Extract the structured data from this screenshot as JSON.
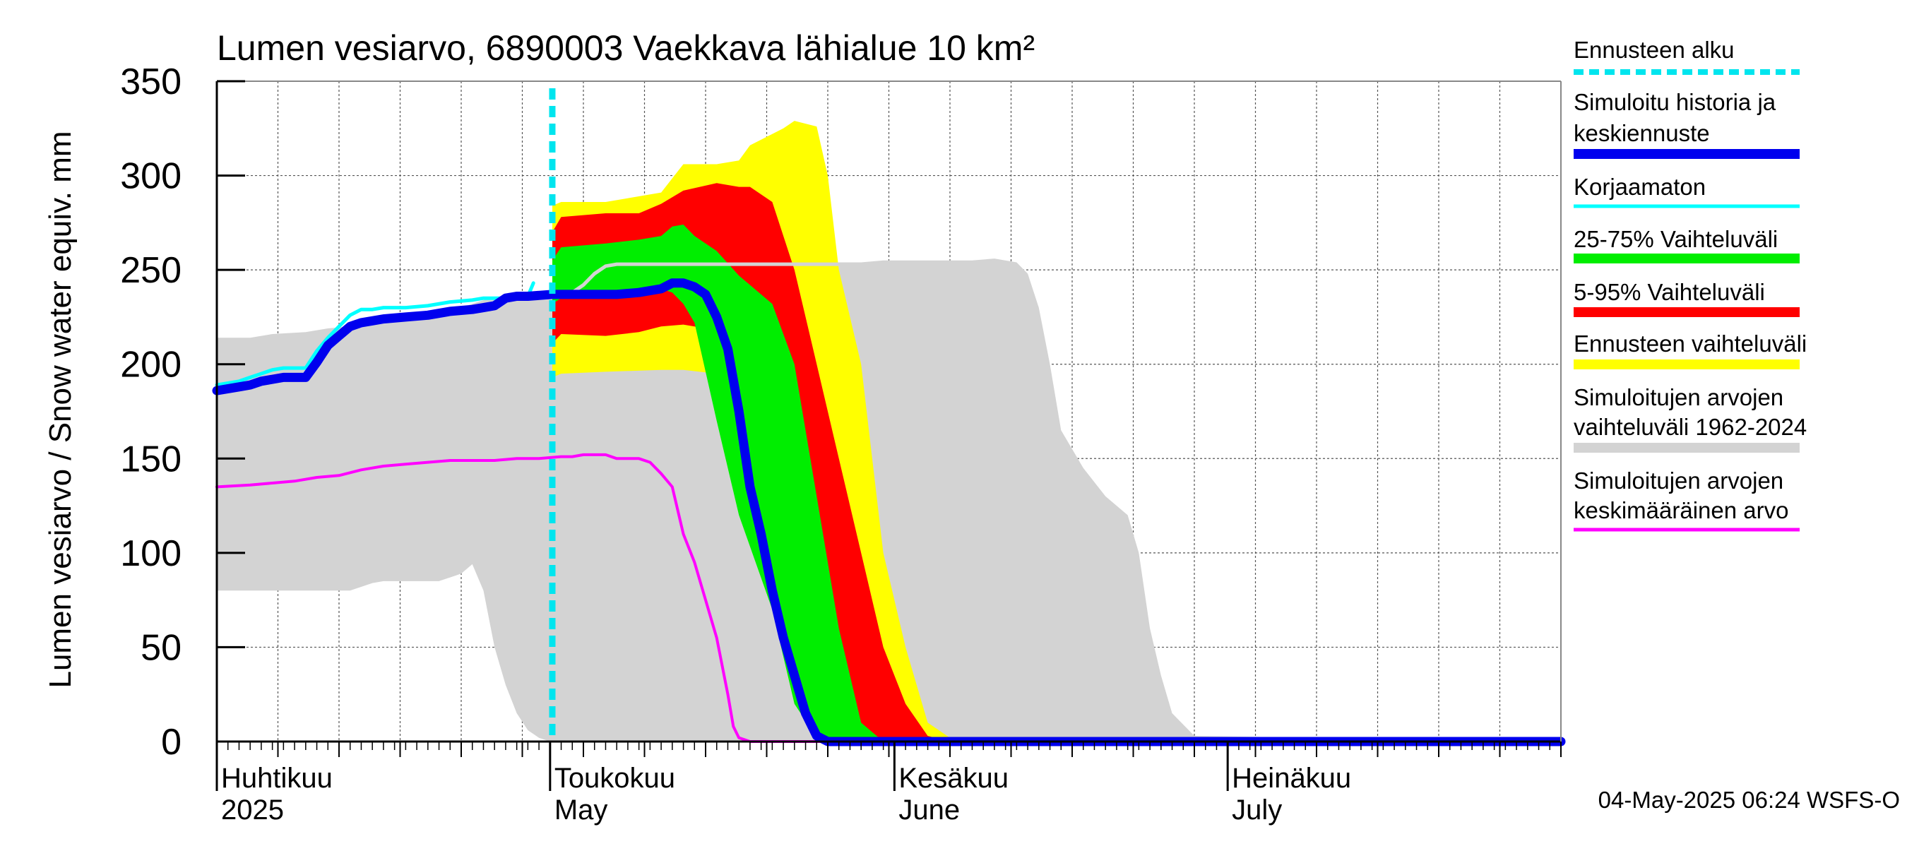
{
  "chart_data": {
    "type": "area",
    "title": "Lumen vesiarvo, 6890003 Vaekkava lähialue 10 km²",
    "ylabel": "Lumen vesiarvo / Snow water equiv.    mm",
    "ylim": [
      0,
      350
    ],
    "yticks": [
      0,
      50,
      100,
      150,
      200,
      250,
      300,
      350
    ],
    "grid": true,
    "legend_position": "right",
    "x_range_days": [
      0,
      121
    ],
    "x_start_date": "2025-04-01",
    "forecast_start_day": 30.2,
    "month_labels": [
      {
        "day": 0,
        "fi": "Huhtikuu",
        "en": "2025"
      },
      {
        "day": 30,
        "fi": "Toukokuu",
        "en": "May"
      },
      {
        "day": 61,
        "fi": "Kesäkuu",
        "en": "June"
      },
      {
        "day": 91,
        "fi": "Heinäkuu",
        "en": "July"
      }
    ],
    "timestamp": "04-May-2025 06:24 WSFS-O",
    "colors": {
      "historical_range": "#d3d3d3",
      "forecast_range": "#ffff00",
      "p5_95": "#ff0000",
      "p25_75": "#00ee00",
      "median": "#0000ee",
      "uncorrected": "#00ffff",
      "mean": "#ff00ff",
      "forecast_start": "#00e5ee",
      "gray_line": "#d3d3d3"
    },
    "series": [
      {
        "name": "Simuloitujen arvojen vaihteluväli 1962-2024",
        "kind": "band",
        "color": "#d3d3d3",
        "x": [
          0,
          3,
          5,
          8,
          10,
          12,
          14,
          15,
          18,
          20,
          21,
          22,
          23,
          24,
          25,
          26,
          27,
          28,
          29,
          30,
          31,
          32,
          33,
          35,
          37,
          39,
          40,
          42,
          44,
          46,
          48,
          50,
          52,
          54,
          56,
          58,
          60,
          62,
          64,
          66,
          68,
          70,
          72,
          73,
          74,
          75,
          76,
          78,
          80,
          82,
          83,
          84,
          85,
          86,
          88,
          121
        ],
        "upper": [
          214,
          214,
          216,
          217,
          219,
          220,
          222,
          224,
          225,
          226,
          228,
          230,
          232,
          234,
          235,
          236,
          236,
          237,
          238,
          238,
          240,
          242,
          244,
          246,
          248,
          250,
          252,
          253,
          254,
          254,
          254,
          254,
          254,
          254,
          254,
          254,
          255,
          255,
          255,
          255,
          255,
          256,
          254,
          248,
          230,
          200,
          165,
          145,
          130,
          120,
          100,
          60,
          35,
          15,
          3,
          0
        ],
        "lower": [
          80,
          80,
          80,
          80,
          80,
          80,
          84,
          85,
          85,
          85,
          87,
          89,
          94,
          80,
          50,
          30,
          15,
          6,
          2,
          0,
          0,
          0,
          0,
          0,
          0,
          0,
          0,
          0,
          0,
          0,
          0,
          0,
          0,
          0,
          0,
          0,
          0,
          0,
          0,
          0,
          0,
          0,
          0,
          0,
          0,
          0,
          0,
          0,
          0,
          0,
          0,
          0,
          0,
          0,
          0,
          0
        ]
      },
      {
        "name": "Ennusteen vaihteluväli",
        "kind": "band",
        "color": "#ffff00",
        "x": [
          30.2,
          31,
          35,
          40,
          42,
          45,
          47,
          48,
          50,
          51,
          52,
          54,
          55,
          56,
          58,
          59,
          60,
          62,
          64,
          66,
          68,
          121
        ],
        "upper": [
          284,
          286,
          286,
          291,
          306,
          306,
          308,
          316,
          322,
          325,
          329,
          326,
          300,
          250,
          200,
          150,
          100,
          50,
          10,
          2,
          0,
          0
        ],
        "lower": [
          193,
          195,
          196,
          197,
          197,
          195,
          194,
          192,
          150,
          120,
          80,
          40,
          10,
          2,
          0,
          0,
          0,
          0,
          0,
          0,
          0,
          0
        ]
      },
      {
        "name": "5-95% Vaihteluväli",
        "kind": "band",
        "color": "#ff0000",
        "x": [
          30.2,
          31,
          35,
          38,
          40,
          42,
          45,
          47,
          48,
          50,
          52,
          54,
          56,
          58,
          60,
          62,
          64,
          66,
          121
        ],
        "upper": [
          270,
          278,
          280,
          280,
          285,
          292,
          296,
          294,
          294,
          286,
          250,
          200,
          150,
          100,
          50,
          20,
          3,
          0,
          0
        ],
        "lower": [
          211,
          216,
          215,
          217,
          220,
          221,
          218,
          185,
          160,
          120,
          70,
          30,
          5,
          0,
          0,
          0,
          0,
          0,
          0
        ]
      },
      {
        "name": "25-75% Vaihteluväli",
        "kind": "band",
        "color": "#00ee00",
        "x": [
          30.2,
          31,
          35,
          38,
          40,
          41,
          42,
          43,
          45,
          47,
          50,
          52,
          54,
          56,
          58,
          60,
          121
        ],
        "upper": [
          255,
          262,
          264,
          266,
          268,
          273,
          274,
          268,
          260,
          247,
          232,
          200,
          130,
          60,
          10,
          0,
          0
        ],
        "lower": [
          232,
          235,
          236,
          238,
          240,
          238,
          232,
          222,
          170,
          120,
          70,
          20,
          2,
          0,
          0,
          0,
          0
        ]
      },
      {
        "name": "Simuloitu historia ja keskiennuste",
        "kind": "line",
        "color": "#0000ee",
        "x": [
          0,
          2,
          3,
          4,
          5,
          6,
          7,
          8,
          9,
          10,
          11,
          12,
          13,
          14,
          15,
          17,
          19,
          21,
          23,
          24,
          25,
          26,
          27,
          28,
          30.2,
          31,
          33,
          36,
          38,
          40,
          41,
          42,
          43,
          44,
          45,
          46,
          47,
          48,
          49,
          50,
          51,
          52,
          53,
          54,
          55,
          56,
          121
        ],
        "y": [
          186,
          188,
          189,
          191,
          192,
          193,
          193,
          193,
          201,
          210,
          215,
          220,
          222,
          223,
          224,
          225,
          226,
          228,
          229,
          230,
          231,
          235,
          236,
          236,
          237,
          237,
          237,
          237,
          238,
          240,
          243,
          243,
          241,
          237,
          225,
          208,
          175,
          135,
          110,
          80,
          55,
          35,
          15,
          3,
          0,
          0,
          0
        ]
      },
      {
        "name": "Korjaamaton",
        "kind": "line",
        "color": "#00ffff",
        "x": [
          0,
          2,
          3,
          4,
          5,
          6,
          7,
          8,
          9,
          10,
          11,
          12,
          13,
          14,
          15,
          17,
          19,
          21,
          23,
          24,
          25,
          26,
          27,
          28,
          28.5
        ],
        "y": [
          189,
          191,
          193,
          195,
          197,
          198,
          198,
          198,
          207,
          214,
          220,
          226,
          229,
          229,
          230,
          230,
          231,
          233,
          234,
          235,
          235,
          235,
          236,
          236,
          243
        ]
      },
      {
        "name": "Simuloitujen arvojen keskimääräinen arvo",
        "kind": "line",
        "color": "#ff00ff",
        "x": [
          0,
          3,
          5,
          7,
          9,
          11,
          13,
          15,
          17,
          19,
          21,
          23,
          25,
          27,
          29,
          31,
          32,
          33,
          34,
          35,
          36,
          37,
          38,
          39,
          40,
          41,
          42,
          43,
          44,
          45,
          46,
          46.5,
          47,
          48,
          121
        ],
        "y": [
          135,
          136,
          137,
          138,
          140,
          141,
          144,
          146,
          147,
          148,
          149,
          149,
          149,
          150,
          150,
          151,
          151,
          152,
          152,
          152,
          150,
          150,
          150,
          148,
          142,
          135,
          110,
          95,
          75,
          55,
          25,
          8,
          2,
          0,
          0
        ]
      },
      {
        "name": "",
        "kind": "line",
        "color": "#d3d3d3",
        "x": [
          30.2,
          32,
          33,
          34,
          35,
          36,
          38,
          40,
          45,
          50,
          55,
          57
        ],
        "y": [
          236,
          238,
          242,
          248,
          252,
          253,
          253,
          253,
          253,
          253,
          253,
          253
        ]
      }
    ],
    "legend": [
      {
        "label": "Ennusteen alku",
        "color": "#00e5ee",
        "style": "dashed"
      },
      {
        "label": "Simuloitu historia ja",
        "label2": "keskiennuste",
        "color": "#0000ee",
        "style": "thick"
      },
      {
        "label": "Korjaamaton",
        "color": "#00ffff",
        "style": "thin"
      },
      {
        "label": "25-75% Vaihteluväli",
        "color": "#00ee00",
        "style": "band"
      },
      {
        "label": "5-95% Vaihteluväli",
        "color": "#ff0000",
        "style": "band"
      },
      {
        "label": "Ennusteen vaihteluväli",
        "color": "#ffff00",
        "style": "band"
      },
      {
        "label": "Simuloitujen arvojen",
        "label2": "vaihteluväli 1962-2024",
        "color": "#d3d3d3",
        "style": "band"
      },
      {
        "label": "Simuloitujen arvojen",
        "label2": "keskimääräinen arvo",
        "color": "#ff00ff",
        "style": "thin"
      }
    ]
  }
}
